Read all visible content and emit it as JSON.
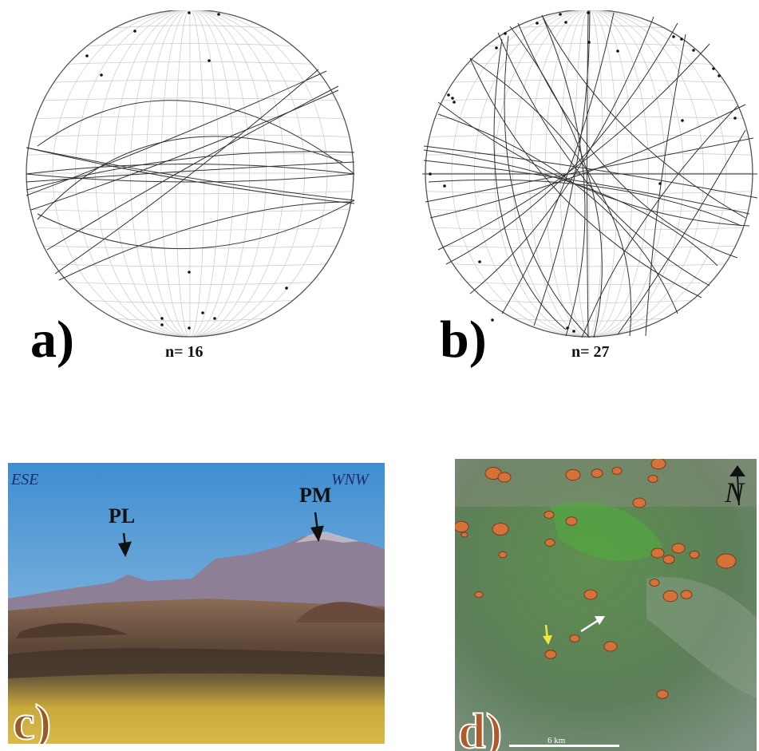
{
  "panels": {
    "a": {
      "label": "a)",
      "count": "n= 16"
    },
    "b": {
      "label": "b)",
      "count": "n= 27"
    },
    "c": {
      "label": "c)",
      "left_direction": "ESE",
      "right_direction": "WNW",
      "peak_left": "PL",
      "peak_right": "PM"
    },
    "d": {
      "label": "d)",
      "north_symbol": "N",
      "scale_text": "6 km"
    }
  },
  "colors": {
    "sky": "#4f95cf",
    "mountains": "#8d7f92",
    "grassland": "#d4b441",
    "satellite": "#5a7e55",
    "cone": "#d7733a",
    "arrow_yellow": "#f2e63a",
    "arrow_white": "#ffffff"
  }
}
